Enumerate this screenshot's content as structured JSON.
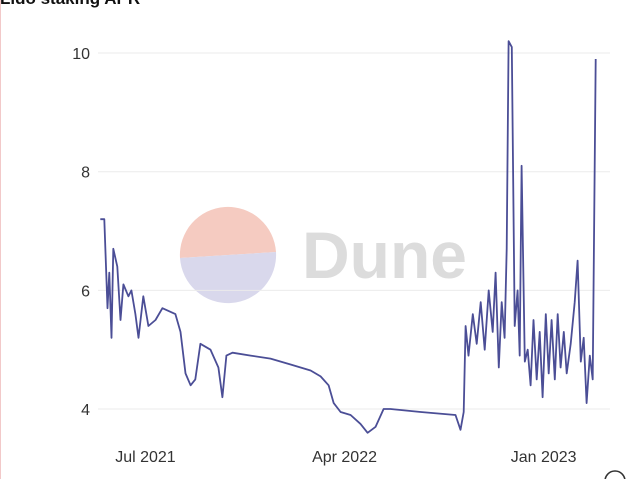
{
  "chart_data": {
    "type": "line",
    "title": "Lido staking APR",
    "watermark": "Dune",
    "color": "#4b4e96",
    "xlim": [
      2021.31,
      2023.25
    ],
    "xticks": [
      {
        "value": 2021.5,
        "label": "Jul 2021"
      },
      {
        "value": 2022.25,
        "label": "Apr 2022"
      },
      {
        "value": 2023.0,
        "label": "Jan 2023"
      }
    ],
    "ylim": [
      3.5,
      10.4
    ],
    "yticks": [
      4,
      6,
      8,
      10
    ],
    "grid": true,
    "x": [
      2021.33,
      2021.345,
      2021.357,
      2021.364,
      2021.372,
      2021.379,
      2021.394,
      2021.406,
      2021.417,
      2021.436,
      2021.447,
      2021.462,
      2021.474,
      2021.492,
      2021.511,
      2021.538,
      2021.564,
      2021.613,
      2021.632,
      2021.651,
      2021.67,
      2021.688,
      2021.707,
      2021.745,
      2021.775,
      2021.79,
      2021.805,
      2021.828,
      2021.896,
      2021.971,
      2022.047,
      2022.122,
      2022.16,
      2022.19,
      2022.209,
      2022.235,
      2022.273,
      2022.31,
      2022.337,
      2022.367,
      2022.397,
      2022.423,
      2022.537,
      2022.668,
      2022.687,
      2022.699,
      2022.706,
      2022.717,
      2022.733,
      2022.748,
      2022.763,
      2022.778,
      2022.793,
      2022.808,
      2022.819,
      2022.831,
      2022.842,
      2022.853,
      2022.861,
      2022.868,
      2022.88,
      2022.891,
      2022.902,
      2022.91,
      2022.917,
      2022.929,
      2022.94,
      2022.951,
      2022.962,
      2022.974,
      2022.985,
      2022.996,
      2023.008,
      2023.019,
      2023.03,
      2023.042,
      2023.053,
      2023.064,
      2023.076,
      2023.087,
      2023.102,
      2023.117,
      2023.128,
      2023.14,
      2023.151,
      2023.162,
      2023.174,
      2023.185,
      2023.196
    ],
    "values": [
      7.2,
      7.2,
      5.7,
      6.3,
      5.2,
      6.7,
      6.4,
      5.5,
      6.1,
      5.9,
      6.0,
      5.6,
      5.2,
      5.9,
      5.4,
      5.5,
      5.7,
      5.6,
      5.3,
      4.6,
      4.4,
      4.5,
      5.1,
      5.0,
      4.7,
      4.2,
      4.9,
      4.95,
      4.9,
      4.85,
      4.75,
      4.65,
      4.55,
      4.4,
      4.1,
      3.95,
      3.9,
      3.75,
      3.6,
      3.7,
      4.0,
      4.0,
      3.95,
      3.9,
      3.65,
      3.95,
      5.4,
      4.9,
      5.6,
      5.1,
      5.8,
      5.0,
      6.0,
      5.3,
      6.3,
      4.7,
      5.8,
      5.2,
      6.7,
      10.2,
      10.1,
      5.4,
      6.0,
      4.9,
      8.1,
      4.8,
      5.0,
      4.4,
      5.5,
      4.5,
      5.3,
      4.2,
      5.6,
      4.6,
      5.5,
      4.5,
      5.6,
      4.7,
      5.3,
      4.6,
      5.1,
      5.8,
      6.5,
      4.8,
      5.2,
      4.1,
      4.9,
      4.5,
      9.9
    ]
  }
}
